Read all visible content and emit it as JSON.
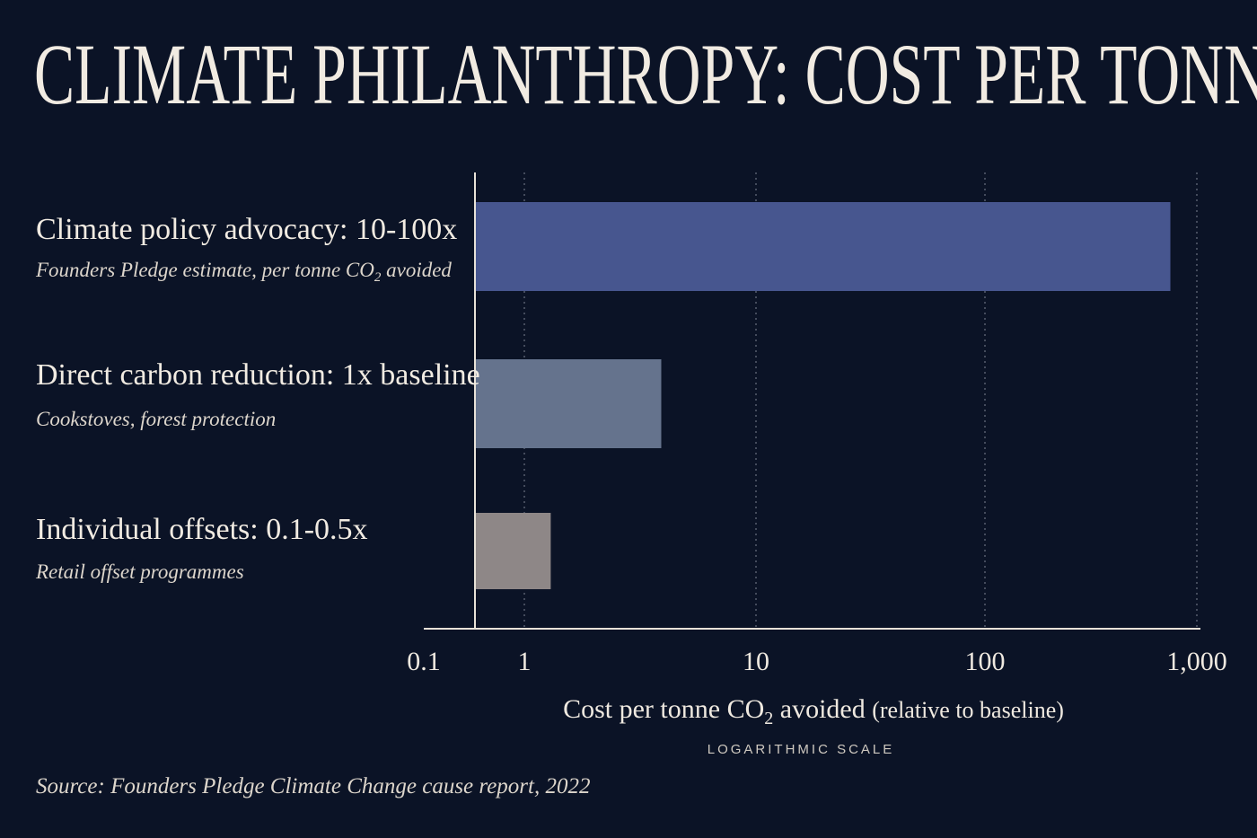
{
  "title": "CLIMATE PHILANTHROPY: COST PER TONNE",
  "source": "Source: Founders Pledge Climate Change cause report, 2022",
  "chart_data": {
    "type": "bar",
    "orientation": "horizontal",
    "scale": "log",
    "xlim": [
      0.1,
      1000
    ],
    "ticks": [
      0.1,
      1,
      10,
      100,
      1000
    ],
    "tick_labels": [
      "0.1",
      "1",
      "10",
      "100",
      "1,000"
    ],
    "grid": "vertical dotted at 1, 10, 100, 1,000",
    "xlabel": {
      "main_pre": "Cost per tonne CO",
      "main_sub": "2",
      "main_post": " avoided",
      "paren": "(relative to baseline)",
      "scale_note": "LOGARITHMIC SCALE"
    },
    "categories": [
      {
        "label": "Climate policy advocacy: 10-100x",
        "sublabel_pre": "Founders Pledge estimate, per tonne CO",
        "sublabel_sub": "2",
        "sublabel_post": " avoided",
        "value": 750,
        "color": "#47568f"
      },
      {
        "label": "Direct carbon reduction: 1x baseline",
        "sublabel_pre": "Cookstoves, forest protection",
        "sublabel_sub": "",
        "sublabel_post": "",
        "value": 3.9,
        "color": "#65738d"
      },
      {
        "label": "Individual offsets: 0.1-0.5x",
        "sublabel_pre": "Retail offset programmes",
        "sublabel_sub": "",
        "sublabel_post": "",
        "value": 1.3,
        "color": "#8e8787"
      }
    ]
  }
}
